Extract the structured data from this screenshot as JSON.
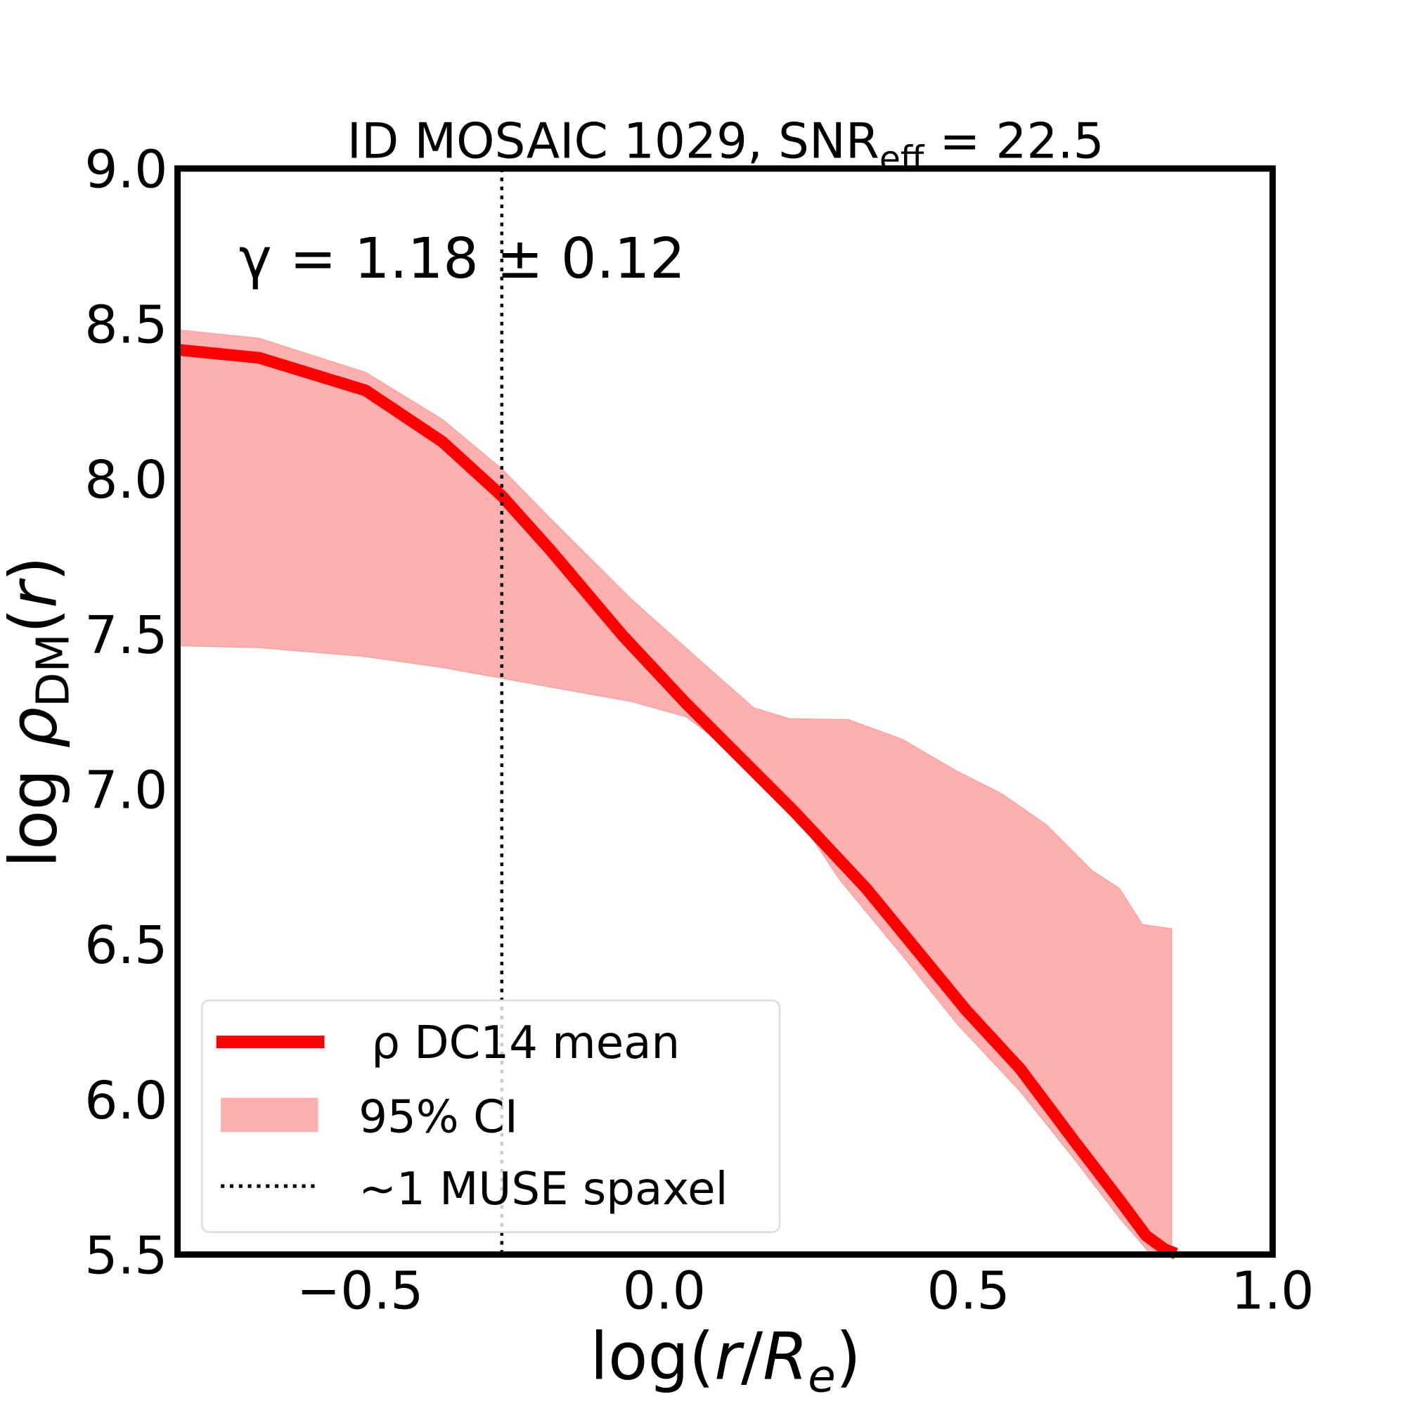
{
  "chart_data": {
    "type": "line",
    "title": "ID MOSAIC 1029, SNR",
    "title_sub": "eff",
    "title_suffix": " = 22.5",
    "annotation": "γ = 1.18 ± 0.12",
    "xlabel": "log(r/Rₑ)",
    "ylabel": "log ρ_DM(r)",
    "xlim": [
      -0.8,
      1.0
    ],
    "ylim": [
      5.5,
      9.0
    ],
    "xticks": [
      "−0.5",
      "0.0",
      "0.5",
      "1.0"
    ],
    "xtick_values": [
      -0.5,
      0.0,
      0.5,
      1.0
    ],
    "yticks": [
      "5.5",
      "6.0",
      "6.5",
      "7.0",
      "7.5",
      "8.0",
      "8.5",
      "9.0"
    ],
    "ytick_values": [
      5.5,
      6.0,
      6.5,
      7.0,
      7.5,
      8.0,
      8.5,
      9.0
    ],
    "grid": false,
    "legend_position": "lower-left",
    "series": [
      {
        "name": "ρ DC14 mean",
        "color": "#ff0000",
        "x": [
          -0.8,
          -0.666,
          -0.491,
          -0.365,
          -0.267,
          -0.187,
          -0.068,
          0.036,
          0.214,
          0.332,
          0.496,
          0.585,
          0.674,
          0.748,
          0.792,
          0.822,
          0.841
        ],
        "y": [
          8.416,
          8.39,
          8.285,
          8.12,
          7.945,
          7.77,
          7.494,
          7.276,
          6.927,
          6.68,
          6.288,
          6.099,
          5.866,
          5.677,
          5.561,
          5.518,
          5.503
        ]
      }
    ],
    "band": {
      "name": "95% CI",
      "color": "#fdb0b0",
      "upper_x": [
        -0.8,
        -0.666,
        -0.491,
        -0.365,
        -0.267,
        -0.187,
        -0.053,
        0.08,
        0.147,
        0.206,
        0.303,
        0.392,
        0.481,
        0.555,
        0.629,
        0.703,
        0.748,
        0.786,
        0.834
      ],
      "upper_y": [
        8.48,
        8.453,
        8.343,
        8.192,
        8.032,
        7.872,
        7.61,
        7.378,
        7.262,
        7.227,
        7.224,
        7.16,
        7.058,
        6.985,
        6.884,
        6.738,
        6.68,
        6.564,
        6.55
      ],
      "lower_x": [
        -0.8,
        -0.666,
        -0.491,
        -0.365,
        -0.187,
        -0.053,
        0.036,
        0.125,
        0.214,
        0.288,
        0.392,
        0.481,
        0.585,
        0.674,
        0.748,
        0.8
      ],
      "lower_y": [
        7.462,
        7.456,
        7.427,
        7.392,
        7.329,
        7.282,
        7.233,
        7.102,
        6.927,
        6.709,
        6.462,
        6.244,
        6.026,
        5.808,
        5.619,
        5.5
      ]
    },
    "vline": {
      "name": "~1 MUSE spaxel",
      "x": -0.267,
      "style": "dotted",
      "color": "#000000"
    }
  }
}
